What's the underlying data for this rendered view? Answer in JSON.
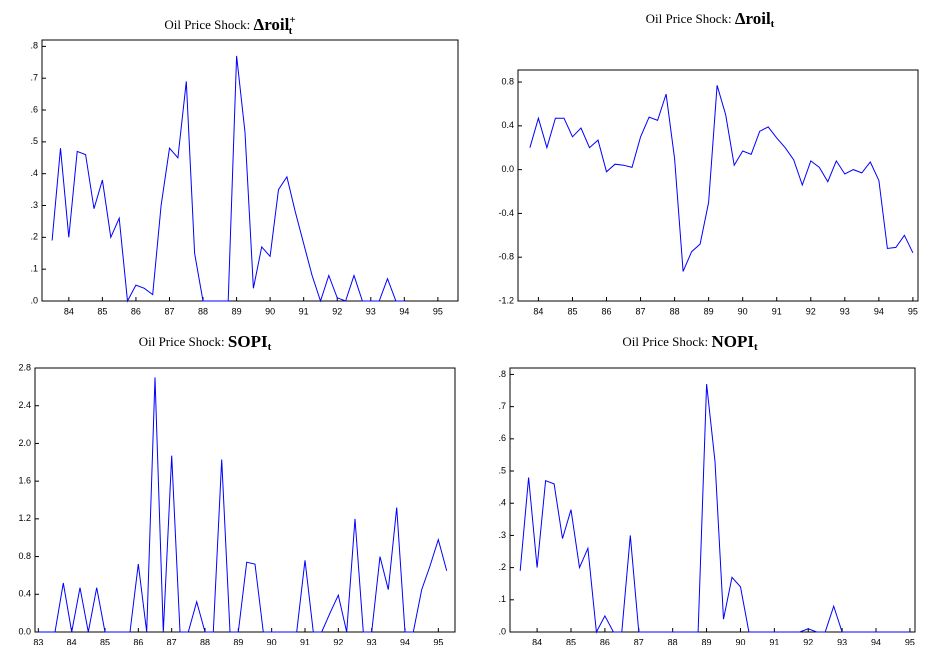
{
  "chart_data": [
    {
      "type": "line",
      "title": "Oil Price Shock:",
      "title_symbol": "Δroil",
      "title_sub": "t",
      "title_sup": "+",
      "x": [
        83.5,
        83.75,
        84,
        84.25,
        84.5,
        84.75,
        85,
        85.25,
        85.5,
        85.75,
        86,
        86.25,
        86.5,
        86.75,
        87,
        87.25,
        87.5,
        87.75,
        88,
        88.25,
        88.5,
        88.75,
        89,
        89.25,
        89.5,
        89.75,
        90,
        90.25,
        90.5,
        90.75,
        91,
        91.25,
        91.5,
        91.75,
        92,
        92.25,
        92.5,
        92.75,
        93,
        93.25,
        93.5,
        93.75,
        94
      ],
      "values": [
        0.19,
        0.48,
        0.2,
        0.47,
        0.46,
        0.29,
        0.38,
        0.2,
        0.26,
        0,
        0.05,
        0.04,
        0.02,
        0.3,
        0.48,
        0.45,
        0.69,
        0.15,
        0,
        0,
        0,
        0,
        0.77,
        0.53,
        0.04,
        0.17,
        0.14,
        0.35,
        0.39,
        0.28,
        0.18,
        0.08,
        0,
        0.08,
        0.01,
        0,
        0.08,
        0,
        0,
        0,
        0.07,
        0,
        0
      ],
      "color": "#0000ff",
      "xlim": [
        83.2,
        95.6
      ],
      "xticks": [
        84,
        85,
        86,
        87,
        88,
        89,
        90,
        91,
        92,
        93,
        94,
        95
      ],
      "ylim": [
        0,
        0.82
      ],
      "yticks": [
        {
          "value": 0,
          "label": ".0"
        },
        {
          "value": 0.1,
          "label": ".1"
        },
        {
          "value": 0.2,
          "label": ".2"
        },
        {
          "value": 0.3,
          "label": ".3"
        },
        {
          "value": 0.4,
          "label": ".4"
        },
        {
          "value": 0.5,
          "label": ".5"
        },
        {
          "value": 0.6,
          "label": ".6"
        },
        {
          "value": 0.7,
          "label": ".7"
        },
        {
          "value": 0.8,
          "label": ".8"
        }
      ]
    },
    {
      "type": "line",
      "title": "Oil Price Shock:",
      "title_symbol": "Δroil",
      "title_sub": "t",
      "x": [
        83.75,
        84,
        84.25,
        84.5,
        84.75,
        85,
        85.25,
        85.5,
        85.75,
        86,
        86.25,
        86.5,
        86.75,
        87,
        87.25,
        87.5,
        87.75,
        88,
        88.25,
        88.5,
        88.75,
        89,
        89.25,
        89.5,
        89.75,
        90,
        90.25,
        90.5,
        90.75,
        91,
        91.25,
        91.5,
        91.75,
        92,
        92.25,
        92.5,
        92.75,
        93,
        93.25,
        93.5,
        93.75,
        94,
        94.25,
        94.5,
        94.75,
        95
      ],
      "values": [
        0.2,
        0.47,
        0.2,
        0.47,
        0.47,
        0.3,
        0.38,
        0.2,
        0.27,
        -0.02,
        0.05,
        0.04,
        0.02,
        0.3,
        0.48,
        0.45,
        0.69,
        0.1,
        -0.93,
        -0.75,
        -0.68,
        -0.3,
        0.77,
        0.5,
        0.04,
        0.17,
        0.14,
        0.35,
        0.39,
        0.29,
        0.2,
        0.09,
        -0.14,
        0.08,
        0.02,
        -0.11,
        0.08,
        -0.04,
        0,
        -0.03,
        0.07,
        -0.1,
        -0.72,
        -0.71,
        -0.6,
        -0.76
      ],
      "color": "#0000ff",
      "xlim": [
        83.4,
        95.15
      ],
      "xticks": [
        84,
        85,
        86,
        87,
        88,
        89,
        90,
        91,
        92,
        93,
        94,
        95
      ],
      "ylim": [
        -1.2,
        0.91
      ],
      "yticks": [
        -1.2,
        -0.8,
        -0.4,
        {
          "value": 0,
          "label": "0.0"
        },
        0.4,
        0.8
      ]
    },
    {
      "type": "line",
      "title": "Oil Price Shock:",
      "title_symbol": "SOPI",
      "title_sub": "t",
      "x": [
        83,
        83.25,
        83.5,
        83.75,
        84,
        84.25,
        84.5,
        84.75,
        85,
        85.25,
        85.5,
        85.75,
        86,
        86.25,
        86.5,
        86.75,
        87,
        87.25,
        87.5,
        87.75,
        88,
        88.25,
        88.5,
        88.75,
        89,
        89.25,
        89.5,
        89.75,
        90,
        90.25,
        90.5,
        90.75,
        91,
        91.25,
        91.5,
        91.75,
        92,
        92.25,
        92.5,
        92.75,
        93,
        93.25,
        93.5,
        93.75,
        94,
        94.25,
        94.5,
        94.75,
        95,
        95.25
      ],
      "values": [
        0,
        0,
        0,
        0.52,
        0,
        0.47,
        0,
        0.47,
        0,
        0,
        0,
        0,
        0.72,
        0,
        2.7,
        0,
        1.87,
        0,
        0,
        0.32,
        0,
        0,
        1.83,
        0,
        0,
        0.74,
        0.72,
        0,
        0,
        0,
        0,
        0,
        0.76,
        0,
        0,
        0.2,
        0.39,
        0,
        1.2,
        0,
        0,
        0.8,
        0.45,
        1.32,
        0,
        0,
        0.45,
        0.7,
        0.98,
        0.65
      ],
      "color": "#0000ff",
      "xlim": [
        82.9,
        95.5
      ],
      "xticks": [
        83,
        84,
        85,
        86,
        87,
        88,
        89,
        90,
        91,
        92,
        93,
        94,
        95
      ],
      "ylim": [
        0,
        2.8
      ],
      "yticks": [
        {
          "value": 0,
          "label": "0.0"
        },
        0.4,
        0.8,
        1.2,
        1.6,
        {
          "value": 2,
          "label": "2.0"
        },
        2.4,
        2.8
      ]
    },
    {
      "type": "line",
      "title": "Oil Price Shock:",
      "title_symbol": "NOPI",
      "title_sub": "t",
      "x": [
        83.5,
        83.75,
        84,
        84.25,
        84.5,
        84.75,
        85,
        85.25,
        85.5,
        85.75,
        86,
        86.25,
        86.5,
        86.75,
        87,
        87.25,
        87.5,
        87.75,
        88,
        88.25,
        88.5,
        88.75,
        89,
        89.25,
        89.5,
        89.75,
        90,
        90.25,
        90.5,
        90.75,
        91,
        91.25,
        91.5,
        91.75,
        92,
        92.25,
        92.5,
        92.75,
        93,
        93.25,
        93.5,
        93.75,
        94,
        94.25,
        94.5,
        94.75,
        95
      ],
      "values": [
        0.19,
        0.48,
        0.2,
        0.47,
        0.46,
        0.29,
        0.38,
        0.2,
        0.26,
        0,
        0.05,
        0,
        0,
        0.3,
        0,
        0,
        0,
        0,
        0,
        0,
        0,
        0,
        0.77,
        0.53,
        0.04,
        0.17,
        0.14,
        0,
        0,
        0,
        0,
        0,
        0,
        0,
        0.01,
        0,
        0,
        0.08,
        0,
        0,
        0,
        0,
        0,
        0,
        0,
        0,
        0
      ],
      "color": "#0000ff",
      "xlim": [
        83.2,
        95.15
      ],
      "xticks": [
        84,
        85,
        86,
        87,
        88,
        89,
        90,
        91,
        92,
        93,
        94,
        95
      ],
      "ylim": [
        0,
        0.82
      ],
      "yticks": [
        {
          "value": 0,
          "label": ".0"
        },
        {
          "value": 0.1,
          "label": ".1"
        },
        {
          "value": 0.2,
          "label": ".2"
        },
        {
          "value": 0.3,
          "label": ".3"
        },
        {
          "value": 0.4,
          "label": ".4"
        },
        {
          "value": 0.5,
          "label": ".5"
        },
        {
          "value": 0.6,
          "label": ".6"
        },
        {
          "value": 0.7,
          "label": ".7"
        },
        {
          "value": 0.8,
          "label": ".8"
        }
      ]
    }
  ]
}
